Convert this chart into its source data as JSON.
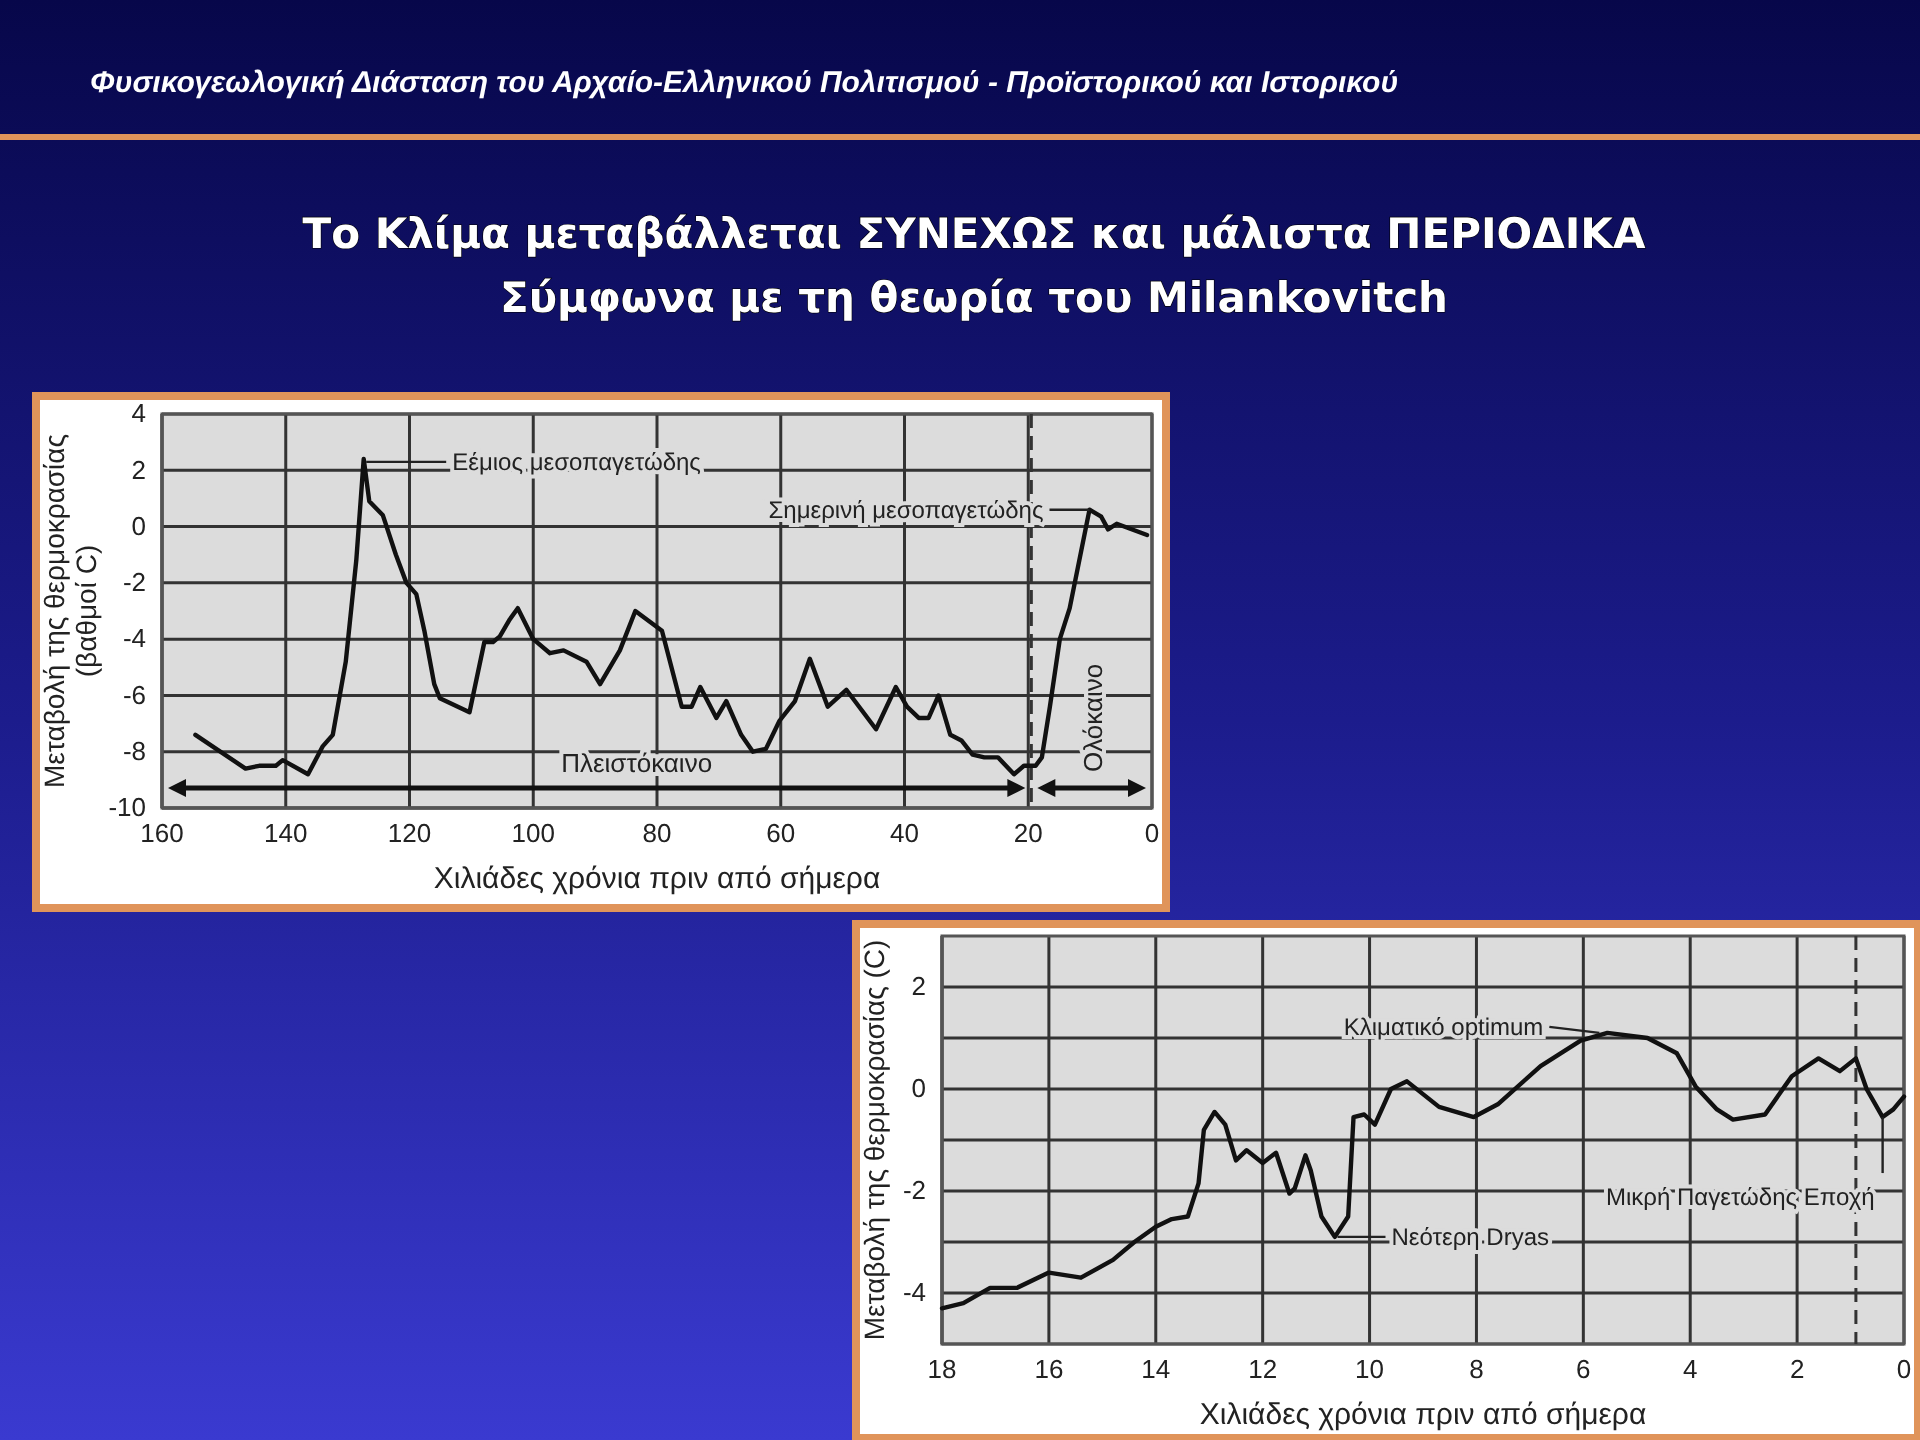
{
  "chart_data": [
    {
      "type": "other",
      "title": "Το Κλίμα μεταβάλλεται ΣΥΝΕΧΩΣ και μάλιστα ΠΕΡΙΟΔΙΚΑ\nΣύμφωνα με τη θεωρία του Milankovitch",
      "subtitle": "Φυσικογεωλογική Διάσταση του Αρχαίο-Ελληνικού Πολιτισμού -  Προϊστορικού και Ιστορικού"
    },
    {
      "type": "line",
      "xlabel": "Χιλιάδες χρόνια πριν από σήμερα",
      "ylabel": "Μεταβολή της θερμοκρασίας\n(βαθμοί C)",
      "xlim": [
        160,
        0
      ],
      "ylim": [
        -10,
        4
      ],
      "xticks": [
        160,
        140,
        120,
        100,
        80,
        60,
        40,
        20,
        0
      ],
      "yticks": [
        -10,
        -8,
        -6,
        -4,
        -2,
        0,
        2,
        4
      ],
      "grid": true,
      "series": [
        {
          "color": "#111111",
          "x": [
            154.6,
            146.5,
            144.3,
            141.6,
            140.5,
            136.4,
            134,
            132.4,
            130.3,
            128.6,
            127.4,
            126.5,
            124.3,
            122.2,
            120.5,
            118.9,
            117.6,
            116,
            115.1,
            110.3,
            107.9,
            106.5,
            105.4,
            103.8,
            102.5,
            100,
            97.3,
            95.1,
            91.4,
            89.2,
            86,
            83.5,
            79.2,
            76,
            74.4,
            73,
            70.4,
            68.8,
            66.4,
            64.5,
            62.4,
            60.2,
            57.7,
            55.3,
            52.4,
            49.4,
            44.6,
            41.4,
            39.6,
            37.7,
            36.1,
            34.5,
            32.6,
            30.8,
            29,
            27.1,
            24.9,
            22.3,
            20.7,
            18.8,
            17.8,
            16.5,
            14.9,
            13.3,
            10.1,
            8.2,
            7.1,
            5.7,
            0.8
          ],
          "values": [
            -7.4,
            -8.6,
            -8.5,
            -8.5,
            -8.3,
            -8.8,
            -7.8,
            -7.4,
            -4.8,
            -1.2,
            2.4,
            0.9,
            0.4,
            -1,
            -2,
            -2.4,
            -3.7,
            -5.6,
            -6.1,
            -6.6,
            -4.1,
            -4.1,
            -3.9,
            -3.3,
            -2.9,
            -4,
            -4.5,
            -4.4,
            -4.8,
            -5.6,
            -4.4,
            -3,
            -3.7,
            -6.4,
            -6.4,
            -5.7,
            -6.8,
            -6.2,
            -7.4,
            -8,
            -7.9,
            -6.9,
            -6.2,
            -4.7,
            -6.4,
            -5.8,
            -7.2,
            -5.7,
            -6.4,
            -6.8,
            -6.8,
            -6,
            -7.4,
            -7.6,
            -8.1,
            -8.2,
            -8.2,
            -8.8,
            -8.5,
            -8.5,
            -8.2,
            -6.4,
            -4,
            -2.9,
            0.6,
            0.35,
            -0.1,
            0.1,
            -0.3
          ]
        }
      ],
      "ref_lines": [
        {
          "axis": "x",
          "value": 19.5,
          "line_style": "dashed"
        }
      ],
      "annotations": [
        {
          "text": "Εέμιος μεσοπαγετώδης",
          "x": 127,
          "y": 2.3
        },
        {
          "text": "Σημερινή μεσοπαγετώδης",
          "x": 10.1,
          "y": 0.6
        },
        "Πλειστόκαινο",
        "Ολόκαινο"
      ]
    },
    {
      "type": "line",
      "xlabel": "Χιλιάδες χρόνια πριν από σήμερα",
      "ylabel": "Μεταβολή της θερμοκρασίας (C)",
      "xlim": [
        18,
        0
      ],
      "ylim": [
        -5,
        3
      ],
      "xticks": [
        18,
        16,
        14,
        12,
        10,
        8,
        6,
        4,
        2,
        0
      ],
      "yticks": [
        -4,
        {
          "value": -3,
          "label": null
        },
        -2,
        {
          "value": -1,
          "label": null
        },
        0,
        {
          "value": 1,
          "label": null
        },
        2
      ],
      "grid": true,
      "series": [
        {
          "color": "#111111",
          "x": [
            18,
            17.6,
            17.1,
            16.6,
            16,
            15.4,
            14.8,
            14.4,
            14,
            13.7,
            13.4,
            13.2,
            13.1,
            12.9,
            12.7,
            12.5,
            12.3,
            12,
            11.75,
            11.5,
            11.4,
            11.2,
            11.1,
            10.9,
            10.65,
            10.4,
            10.3,
            10.1,
            9.9,
            9.6,
            9.3,
            8.7,
            8.05,
            7.6,
            6.8,
            6.05,
            5.55,
            4.8,
            4.25,
            3.9,
            3.5,
            3.2,
            2.6,
            2.1,
            1.6,
            1.2,
            0.9,
            0.7,
            0.4,
            0.2,
            0
          ],
          "values": [
            -4.3,
            -4.2,
            -3.9,
            -3.9,
            -3.6,
            -3.7,
            -3.35,
            -3,
            -2.7,
            -2.55,
            -2.5,
            -1.85,
            -0.8,
            -0.45,
            -0.7,
            -1.4,
            -1.2,
            -1.45,
            -1.25,
            -2.05,
            -1.95,
            -1.3,
            -1.6,
            -2.5,
            -2.9,
            -2.5,
            -0.55,
            -0.5,
            -0.7,
            0,
            0.15,
            -0.35,
            -0.55,
            -0.3,
            0.45,
            0.95,
            1.1,
            1,
            0.7,
            0.05,
            -0.4,
            -0.6,
            -0.5,
            0.25,
            0.6,
            0.35,
            0.6,
            0,
            -0.55,
            -0.4,
            -0.15
          ]
        }
      ],
      "ref_lines": [
        {
          "axis": "x",
          "value": 0.9,
          "line_style": "dashed"
        }
      ],
      "annotations": [
        {
          "text": "Κλιματικό optimum",
          "x": 5.7,
          "y": 1.1
        },
        {
          "text": "Νεότερη Dryas",
          "x": 10.6,
          "y": -2.9
        },
        {
          "text": "Μικρή Παγετώδης Εποχή",
          "x": 0.4,
          "y": -0.55
        }
      ]
    }
  ]
}
